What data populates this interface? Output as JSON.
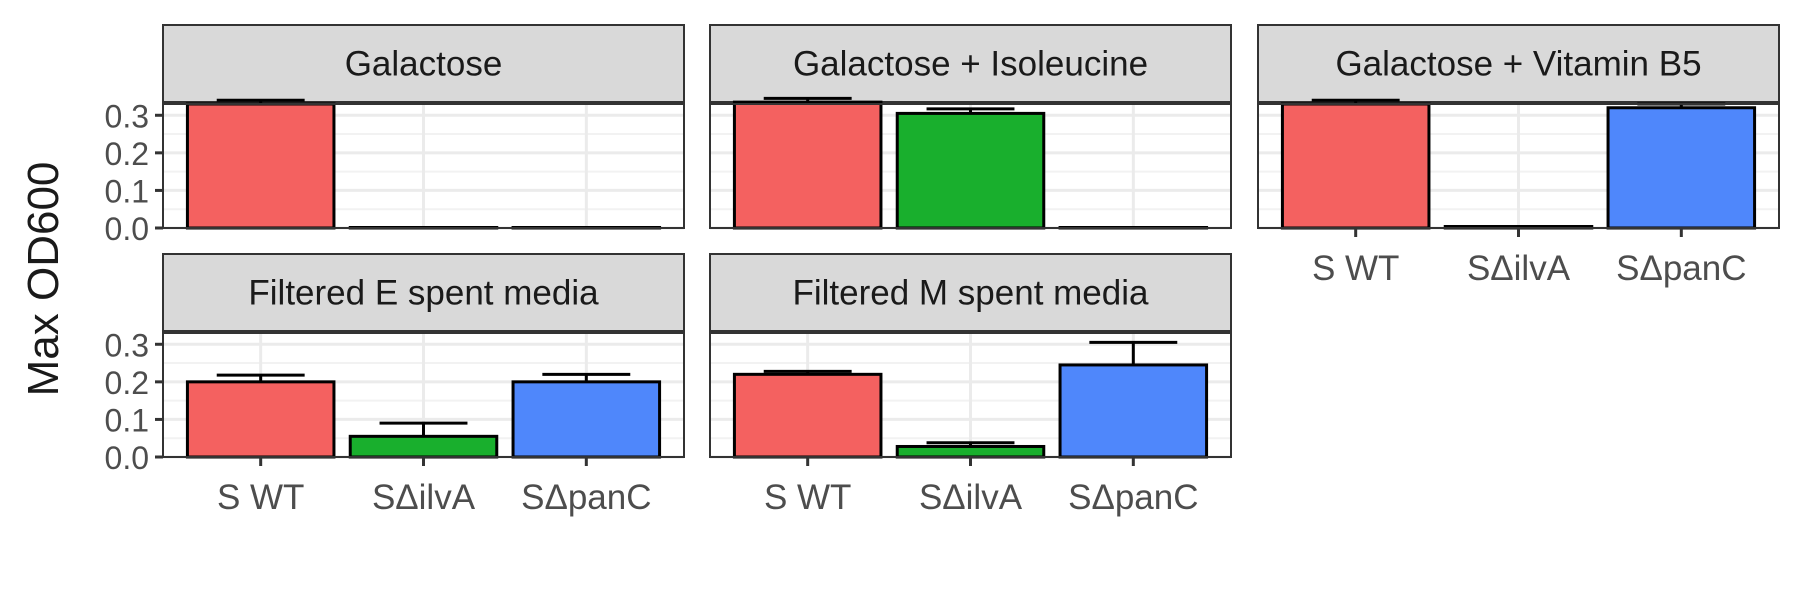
{
  "chart_data": {
    "type": "bar",
    "ylabel": "Max OD600",
    "ylim": [
      0,
      0.33
    ],
    "yticks": [
      "0.0",
      "0.1",
      "0.2",
      "0.3"
    ],
    "ytick_values": [
      0,
      0.1,
      0.2,
      0.3
    ],
    "categories": [
      "S WT",
      "SΔilvA",
      "SΔpanC"
    ],
    "category_colors": [
      "#F46160",
      "#19AF2D",
      "#4F87FB"
    ],
    "grid": true,
    "legend": "none",
    "panels": [
      {
        "title": "Galactose",
        "values": [
          0.33,
          0.001,
          0.001
        ],
        "errors": [
          0.01,
          0,
          0
        ]
      },
      {
        "title": "Galactose + Isoleucine",
        "values": [
          0.335,
          0.305,
          0.001
        ],
        "errors": [
          0.01,
          0.012,
          0
        ]
      },
      {
        "title": "Galactose + Vitamin B5",
        "values": [
          0.33,
          0.004,
          0.32
        ],
        "errors": [
          0.01,
          0,
          0.01
        ]
      },
      {
        "title": "Filtered E spent media",
        "values": [
          0.2,
          0.055,
          0.2
        ],
        "errors": [
          0.018,
          0.035,
          0.02
        ]
      },
      {
        "title": "Filtered M spent media",
        "values": [
          0.22,
          0.028,
          0.245
        ],
        "errors": [
          0.008,
          0.01,
          0.06
        ]
      }
    ]
  }
}
